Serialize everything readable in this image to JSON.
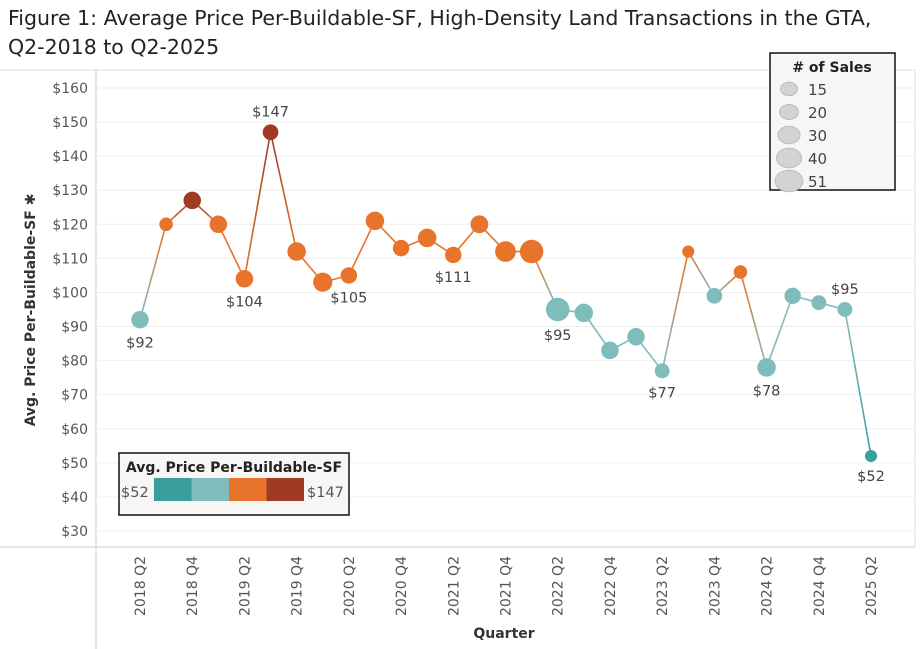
{
  "chart_data": {
    "type": "line",
    "title": "Figure 1: Average Price Per-Buildable-SF, High-Density Land Transactions in the GTA, Q2-2018 to Q2-2025",
    "xlabel": "Quarter",
    "ylabel": "Avg. Price Per-Buildable-SF",
    "ylim": [
      25,
      165
    ],
    "yticks": [
      "$30",
      "$40",
      "$50",
      "$60",
      "$70",
      "$80",
      "$90",
      "$100",
      "$110",
      "$120",
      "$130",
      "$140",
      "$150",
      "$160"
    ],
    "ytick_values": [
      30,
      40,
      50,
      60,
      70,
      80,
      90,
      100,
      110,
      120,
      130,
      140,
      150,
      160
    ],
    "x": [
      "2018 Q2",
      "2018 Q3",
      "2018 Q4",
      "2019 Q1",
      "2019 Q2",
      "2019 Q3",
      "2019 Q4",
      "2020 Q1",
      "2020 Q2",
      "2020 Q3",
      "2020 Q4",
      "2021 Q1",
      "2021 Q2",
      "2021 Q3",
      "2021 Q4",
      "2022 Q1",
      "2022 Q2",
      "2022 Q3",
      "2022 Q4",
      "2023 Q1",
      "2023 Q2",
      "2023 Q3",
      "2023 Q4",
      "2024 Q1",
      "2024 Q2",
      "2024 Q3",
      "2024 Q4",
      "2025 Q1",
      "2025 Q2"
    ],
    "xtick_labels": [
      "2018 Q2",
      "2018 Q4",
      "2019 Q2",
      "2019 Q4",
      "2020 Q2",
      "2020 Q4",
      "2021 Q2",
      "2021 Q4",
      "2022 Q2",
      "2022 Q4",
      "2023 Q2",
      "2023 Q4",
      "2024 Q2",
      "2024 Q4",
      "2025 Q2"
    ],
    "series": [
      {
        "name": "Avg. Price Per-Buildable-SF",
        "values": [
          92,
          120,
          127,
          120,
          104,
          147,
          112,
          103,
          105,
          121,
          113,
          116,
          111,
          120,
          112,
          112,
          95,
          94,
          83,
          87,
          77,
          112,
          99,
          106,
          78,
          99,
          97,
          95,
          52
        ],
        "sales": [
          25,
          15,
          25,
          25,
          25,
          20,
          28,
          30,
          22,
          28,
          22,
          28,
          22,
          26,
          35,
          45,
          45,
          28,
          25,
          25,
          18,
          12,
          20,
          15,
          28,
          22,
          18,
          18,
          12
        ]
      }
    ],
    "data_labels": [
      {
        "index": 0,
        "text": "$92",
        "pos": "below"
      },
      {
        "index": 4,
        "text": "$104",
        "pos": "below"
      },
      {
        "index": 5,
        "text": "$147",
        "pos": "above"
      },
      {
        "index": 8,
        "text": "$105",
        "pos": "below"
      },
      {
        "index": 12,
        "text": "$111",
        "pos": "below"
      },
      {
        "index": 16,
        "text": "$95",
        "pos": "below"
      },
      {
        "index": 20,
        "text": "$77",
        "pos": "below"
      },
      {
        "index": 24,
        "text": "$78",
        "pos": "below"
      },
      {
        "index": 27,
        "text": "$95",
        "pos": "above"
      },
      {
        "index": 28,
        "text": "$52",
        "pos": "below"
      }
    ],
    "size_legend": {
      "title": "# of Sales",
      "entries": [
        "15",
        "20",
        "30",
        "40",
        "51"
      ],
      "values": [
        15,
        20,
        30,
        40,
        51
      ],
      "placement": "top-right"
    },
    "color_legend": {
      "title": "Avg. Price Per-Buildable-SF",
      "min_label": "$52",
      "max_label": "$147",
      "min": 52,
      "max": 147,
      "colors": [
        "#3a9e9e",
        "#7fbdbd",
        "#e8732a",
        "#9f3b22"
      ],
      "placement": "bottom-left"
    },
    "grid": true
  }
}
